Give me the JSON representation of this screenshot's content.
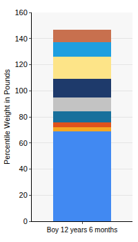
{
  "chart_data": {
    "type": "bar",
    "stacked": true,
    "y_label": "Percentile Weight in Pounds",
    "categories": [
      "Boy 12 years 6 months"
    ],
    "series": [
      {
        "color": "#4189f2",
        "values": [
          69
        ]
      },
      {
        "color": "#f5a623",
        "values": [
          3
        ]
      },
      {
        "color": "#e0521c",
        "values": [
          4
        ]
      },
      {
        "color": "#18709c",
        "values": [
          8
        ]
      },
      {
        "color": "#c3c3c3",
        "values": [
          11
        ]
      },
      {
        "color": "#1e3a6b",
        "values": [
          14
        ]
      },
      {
        "color": "#fde488",
        "values": [
          17
        ]
      },
      {
        "color": "#1e9fe0",
        "values": [
          11
        ]
      },
      {
        "color": "#c8704e",
        "values": [
          10
        ]
      }
    ],
    "ylim": [
      0,
      160
    ],
    "yticks": [
      0,
      20,
      40,
      60,
      80,
      100,
      120,
      140,
      160
    ],
    "grid": true
  }
}
